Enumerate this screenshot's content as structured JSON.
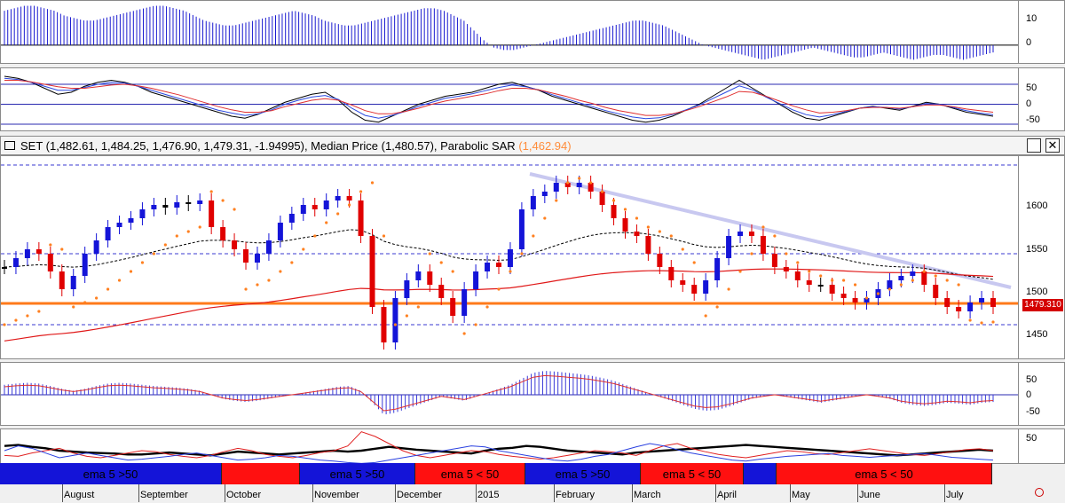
{
  "title": {
    "symbol_line": "SET (1,482.61, 1,484.25, 1,476.90, 1,479.31, -1.94995), Median Price (1,480.57), Parabolic SAR",
    "sar_value": "(1,462.94)",
    "maximize_label": "□",
    "close_label": "✕"
  },
  "price_tag": "1479.310",
  "axes": {
    "panel1": [
      "10",
      "0"
    ],
    "panel2": [
      "50",
      "0",
      "-50"
    ],
    "price": [
      "1600",
      "1550",
      "1500",
      "1450"
    ],
    "panel4": [
      "50",
      "0",
      "-50"
    ],
    "panel5": [
      "50"
    ]
  },
  "bands": [
    {
      "label": "ema 5 >50",
      "color": "#1414d8"
    },
    {
      "label": "",
      "color": "#ff1010"
    },
    {
      "label": "ema 5 >50",
      "color": "#1414d8"
    },
    {
      "label": "ema 5 < 50",
      "color": "#ff1010"
    },
    {
      "label": "ema 5 >50",
      "color": "#1414d8"
    },
    {
      "label": "ema 5 < 50",
      "color": "#ff1010"
    },
    {
      "label": "",
      "color": "#1414d8"
    },
    {
      "label": "ema 5 < 50",
      "color": "#ff1010"
    }
  ],
  "months": [
    "August",
    "September",
    "October",
    "November",
    "December",
    "2015",
    "February",
    "March",
    "April",
    "May",
    "June",
    "July"
  ],
  "colors": {
    "up": "#1414d8",
    "down": "#e00000",
    "neutral": "#000000",
    "sar": "#ff8020",
    "level": "#ff7a1a"
  },
  "chart_data": [
    {
      "type": "bar",
      "title": "",
      "ylim": [
        -8,
        18
      ],
      "values": [
        14,
        15,
        16,
        16,
        15,
        14,
        12,
        11,
        10,
        10,
        11,
        12,
        13,
        14,
        15,
        16,
        16,
        15,
        14,
        12,
        10,
        9,
        8,
        8,
        9,
        10,
        11,
        12,
        13,
        14,
        13,
        12,
        10,
        9,
        8,
        8,
        9,
        10,
        11,
        12,
        13,
        14,
        15,
        15,
        14,
        12,
        10,
        6,
        2,
        -1,
        -2,
        -2,
        -1,
        0,
        1,
        2,
        3,
        4,
        5,
        6,
        7,
        8,
        9,
        10,
        10,
        9,
        8,
        6,
        4,
        2,
        0,
        -1,
        -2,
        -3,
        -4,
        -5,
        -6,
        -5,
        -4,
        -3,
        -2,
        -1,
        -2,
        -3,
        -4,
        -5,
        -5,
        -4,
        -3,
        -4,
        -5,
        -6,
        -5,
        -4,
        -4,
        -5,
        -6,
        -5,
        -4,
        -3
      ]
    },
    {
      "type": "line",
      "title": "",
      "ylim": [
        -70,
        90
      ],
      "series": [
        {
          "values": [
            70,
            65,
            55,
            40,
            25,
            30,
            45,
            55,
            60,
            55,
            45,
            30,
            20,
            10,
            0,
            -10,
            -20,
            -30,
            -35,
            -25,
            -10,
            5,
            15,
            25,
            30,
            10,
            -20,
            -40,
            -45,
            -30,
            -15,
            0,
            10,
            20,
            25,
            30,
            40,
            50,
            55,
            45,
            35,
            20,
            10,
            0,
            -10,
            -20,
            -30,
            -40,
            -45,
            -40,
            -30,
            -15,
            0,
            20,
            40,
            60,
            40,
            20,
            0,
            -20,
            -35,
            -40,
            -30,
            -20,
            -10,
            -5,
            -10,
            -15,
            -5,
            5,
            0,
            -10,
            -20,
            -25,
            -30
          ]
        },
        {
          "values": [
            65,
            62,
            55,
            45,
            35,
            35,
            42,
            50,
            55,
            53,
            45,
            35,
            25,
            15,
            5,
            -5,
            -15,
            -22,
            -28,
            -24,
            -14,
            0,
            10,
            18,
            22,
            12,
            -10,
            -28,
            -35,
            -28,
            -18,
            -5,
            5,
            15,
            20,
            26,
            34,
            42,
            48,
            44,
            36,
            24,
            14,
            4,
            -6,
            -16,
            -24,
            -32,
            -36,
            -34,
            -26,
            -14,
            -2,
            14,
            30,
            46,
            36,
            18,
            2,
            -14,
            -26,
            -32,
            -26,
            -18,
            -10,
            -6,
            -8,
            -12,
            -6,
            2,
            0,
            -8,
            -16,
            -22,
            -26
          ]
        },
        {
          "values": [
            60,
            60,
            56,
            50,
            44,
            40,
            40,
            44,
            48,
            50,
            46,
            40,
            32,
            24,
            14,
            4,
            -6,
            -14,
            -20,
            -20,
            -16,
            -6,
            2,
            10,
            14,
            10,
            -2,
            -16,
            -24,
            -24,
            -18,
            -10,
            0,
            8,
            14,
            20,
            26,
            34,
            40,
            40,
            36,
            28,
            20,
            10,
            2,
            -8,
            -16,
            -22,
            -28,
            -28,
            -24,
            -16,
            -6,
            6,
            18,
            32,
            30,
            20,
            8,
            -4,
            -14,
            -22,
            -20,
            -16,
            -10,
            -8,
            -8,
            -10,
            -6,
            -2,
            -2,
            -6,
            -12,
            -16,
            -20
          ]
        }
      ]
    },
    {
      "type": "line",
      "title": "SET",
      "ylim": [
        1420,
        1650
      ],
      "series": [
        {
          "name": "SET",
          "values": [
            1525,
            1535,
            1545,
            1540,
            1520,
            1500,
            1515,
            1540,
            1555,
            1570,
            1575,
            1580,
            1590,
            1595,
            1592,
            1598,
            1596,
            1600,
            1570,
            1555,
            1545,
            1530,
            1540,
            1555,
            1575,
            1585,
            1595,
            1590,
            1600,
            1605,
            1600,
            1560,
            1480,
            1440,
            1490,
            1510,
            1520,
            1505,
            1490,
            1470,
            1500,
            1520,
            1530,
            1525,
            1545,
            1590,
            1605,
            1610,
            1620,
            1615,
            1620,
            1610,
            1595,
            1580,
            1565,
            1560,
            1540,
            1525,
            1510,
            1505,
            1495,
            1510,
            1535,
            1560,
            1565,
            1560,
            1540,
            1525,
            1520,
            1510,
            1505,
            1505,
            1495,
            1490,
            1485,
            1490,
            1500,
            1510,
            1515,
            1520,
            1505,
            1490,
            1480,
            1475,
            1485,
            1490,
            1480
          ]
        },
        {
          "name": "Parabolic SAR",
          "values": [
            1460,
            1465,
            1470,
            1475,
            1550,
            1545,
            1480,
            1485,
            1490,
            1500,
            1510,
            1520,
            1530,
            1540,
            1550,
            1560,
            1565,
            1570,
            1610,
            1600,
            1590,
            1500,
            1505,
            1510,
            1520,
            1530,
            1545,
            1560,
            1575,
            1585,
            1595,
            1610,
            1620,
            1560,
            1460,
            1470,
            1480,
            1540,
            1530,
            1520,
            1450,
            1460,
            1480,
            1500,
            1520,
            1540,
            1560,
            1580,
            1600,
            1620,
            1625,
            1620,
            1610,
            1600,
            1590,
            1580,
            1570,
            1565,
            1560,
            1545,
            1530,
            1470,
            1480,
            1500,
            1520,
            1540,
            1570,
            1560,
            1540,
            1530,
            1520,
            1515,
            1510,
            1510,
            1505,
            1490,
            1495,
            1500,
            1505,
            1510,
            1520,
            1515,
            1510,
            1505,
            1465,
            1462,
            1463
          ]
        }
      ]
    },
    {
      "type": "bar",
      "title": "",
      "ylim": [
        -80,
        80
      ],
      "values": [
        25,
        28,
        30,
        28,
        22,
        15,
        10,
        15,
        22,
        28,
        30,
        28,
        25,
        22,
        20,
        18,
        15,
        10,
        0,
        -10,
        -15,
        -18,
        -15,
        -10,
        -5,
        0,
        5,
        10,
        15,
        20,
        22,
        10,
        -20,
        -50,
        -45,
        -35,
        -25,
        -15,
        -5,
        -10,
        -15,
        -5,
        5,
        15,
        25,
        40,
        55,
        60,
        58,
        55,
        52,
        48,
        42,
        35,
        25,
        15,
        5,
        -5,
        -15,
        -25,
        -35,
        -40,
        -38,
        -30,
        -20,
        -10,
        -5,
        0,
        -5,
        -10,
        -15,
        -20,
        -15,
        -10,
        -5,
        0,
        -5,
        -10,
        -20,
        -25,
        -28,
        -25,
        -20,
        -22,
        -25,
        -20,
        -18
      ]
    },
    {
      "type": "line",
      "title": "",
      "ylim": [
        0,
        75
      ],
      "series": [
        {
          "values": [
            40,
            42,
            38,
            35,
            30,
            28,
            26,
            25,
            24,
            22,
            22,
            24,
            26,
            24,
            22,
            20,
            24,
            28,
            26,
            24,
            22,
            24,
            26,
            28,
            30,
            28,
            30,
            34,
            38,
            35,
            32,
            30,
            28,
            26,
            24,
            30,
            34,
            36,
            40,
            38,
            34,
            30,
            28,
            26,
            24,
            22,
            26,
            28,
            30,
            32,
            34,
            36,
            38,
            40,
            42,
            40,
            38,
            36,
            34,
            32,
            30,
            28,
            26,
            24,
            22,
            20,
            22,
            24,
            26,
            28,
            30,
            32,
            30
          ]
        },
        {
          "values": [
            20,
            18,
            25,
            30,
            35,
            25,
            18,
            15,
            20,
            25,
            30,
            28,
            22,
            18,
            15,
            20,
            28,
            35,
            30,
            22,
            18,
            15,
            20,
            26,
            30,
            40,
            70,
            60,
            45,
            30,
            20,
            15,
            20,
            25,
            30,
            28,
            22,
            18,
            15,
            12,
            15,
            20,
            25,
            30,
            28,
            25,
            20,
            30,
            40,
            45,
            35,
            28,
            22,
            18,
            15,
            20,
            25,
            30,
            28,
            24,
            22,
            26,
            30,
            34,
            30,
            26,
            22,
            20,
            24,
            28,
            32,
            34,
            30
          ]
        },
        {
          "values": [
            30,
            40,
            35,
            25,
            15,
            20,
            25,
            20,
            15,
            10,
            12,
            15,
            18,
            22,
            25,
            20,
            15,
            10,
            12,
            15,
            20,
            18,
            14,
            10,
            8,
            5,
            3,
            5,
            10,
            15,
            20,
            25,
            30,
            35,
            40,
            38,
            30,
            25,
            20,
            15,
            10,
            8,
            12,
            18,
            22,
            30,
            38,
            45,
            40,
            32,
            25,
            20,
            15,
            10,
            8,
            12,
            15,
            18,
            20,
            22,
            24,
            20,
            18,
            16,
            18,
            20,
            22,
            24,
            20,
            16,
            14,
            12,
            10
          ]
        }
      ]
    }
  ]
}
